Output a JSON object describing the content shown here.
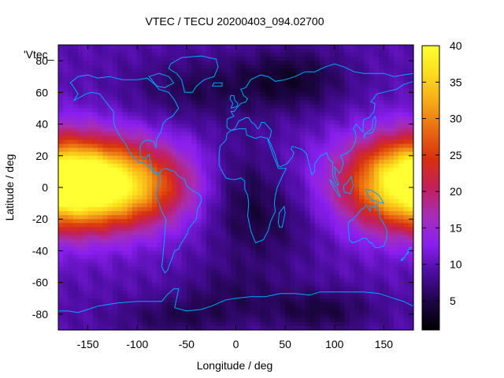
{
  "chart_data": {
    "type": "heatmap",
    "title": "VTEC / TECU 20200403_094.02700",
    "xlabel": "Longitude / deg",
    "ylabel": "Latitude / deg",
    "key_label": "'Vtec_",
    "xlim": [
      -180,
      180
    ],
    "ylim": [
      -90,
      90
    ],
    "x_ticks": [
      -150,
      -100,
      -50,
      0,
      50,
      100,
      150
    ],
    "y_ticks": [
      -80,
      -60,
      -40,
      -20,
      0,
      20,
      40,
      60,
      80
    ],
    "colorbar": {
      "range": [
        1,
        40
      ],
      "ticks": [
        5,
        10,
        15,
        20,
        25,
        30,
        35,
        40
      ],
      "stops": [
        "#000000",
        "#1e0547",
        "#4a0c9e",
        "#8a1ff0",
        "#a52eb8",
        "#c2205a",
        "#d73010",
        "#e86812",
        "#f5a818",
        "#fcdc1c",
        "#ffff33"
      ]
    },
    "coastline_color": "#00a8ff",
    "field": {
      "background": 9.5,
      "components": [
        {
          "lon": -160,
          "lat": 2,
          "amp": 19,
          "sx": 65,
          "sy": 20
        },
        {
          "lon": -115,
          "lat": 1,
          "amp": 14,
          "sx": 45,
          "sy": 17
        },
        {
          "lon": 175,
          "lat": 4,
          "amp": 16,
          "sx": 40,
          "sy": 20
        },
        {
          "lon": -45,
          "lat": 62,
          "amp": -4,
          "sx": 45,
          "sy": 14
        },
        {
          "lon": 55,
          "lat": 68,
          "amp": -6,
          "sx": 40,
          "sy": 14
        },
        {
          "lon": 0,
          "lat": 0,
          "amp": -3,
          "sx": 25,
          "sy": 25
        },
        {
          "lon": 35,
          "lat": -20,
          "amp": -4,
          "sx": 35,
          "sy": 22
        },
        {
          "lon": 85,
          "lat": -78,
          "amp": -5,
          "sx": 40,
          "sy": 10
        },
        {
          "lon": -60,
          "lat": -82,
          "amp": -4,
          "sx": 45,
          "sy": 9
        },
        {
          "lon": -5,
          "lat": -65,
          "amp": -3,
          "sx": 35,
          "sy": 12
        }
      ]
    }
  }
}
